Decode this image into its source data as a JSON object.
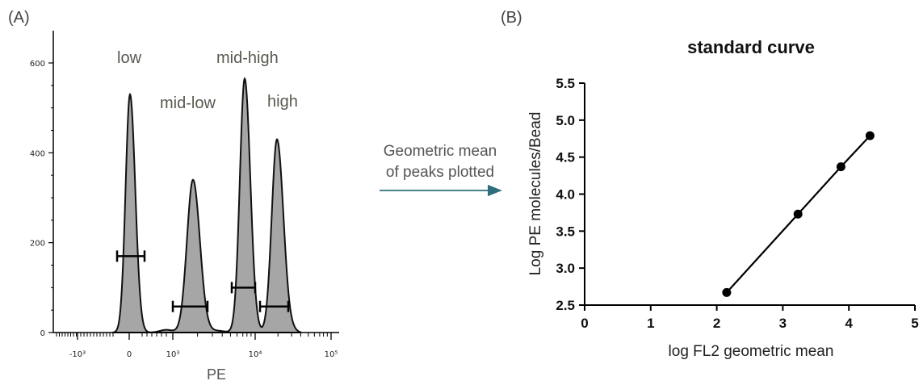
{
  "panels": {
    "a_label": "(A)",
    "b_label": "(B)"
  },
  "arrow": {
    "line1": "Geometric mean",
    "line2": "of peaks plotted",
    "color": "#2f6e7a"
  },
  "chart_data": [
    {
      "type": "area",
      "title": "",
      "xlabel": "PE",
      "ylabel": "",
      "x_scale": "biexponential",
      "ylim": [
        0,
        620
      ],
      "yticks": [
        0,
        200,
        400,
        600
      ],
      "xtick_labels": [
        "-10³",
        "0",
        "10³",
        "10⁴",
        "10⁵"
      ],
      "fill_color": "#a6a6a6",
      "peaks": [
        {
          "label": "low",
          "height": 530,
          "gate_y": 170
        },
        {
          "label": "mid-low",
          "height": 340,
          "gate_y": 58
        },
        {
          "label": "mid-high",
          "height": 565,
          "gate_y": 100
        },
        {
          "label": "high",
          "height": 430,
          "gate_y": 58
        }
      ],
      "grid": false,
      "legend": "none"
    },
    {
      "type": "line",
      "title": "standard curve",
      "xlabel": "log FL2 geometric mean",
      "ylabel": "Log PE molecules/Bead",
      "xlim": [
        0,
        5
      ],
      "ylim": [
        2.5,
        5.5
      ],
      "xticks": [
        "0",
        "1",
        "2",
        "3",
        "4",
        "5"
      ],
      "yticks": [
        "2.5",
        "3.0",
        "3.5",
        "4.0",
        "4.5",
        "5.0",
        "5.5"
      ],
      "x": [
        2.15,
        3.23,
        3.88,
        4.32
      ],
      "y": [
        2.67,
        3.73,
        4.37,
        4.79
      ],
      "grid": false,
      "legend": "none"
    }
  ]
}
